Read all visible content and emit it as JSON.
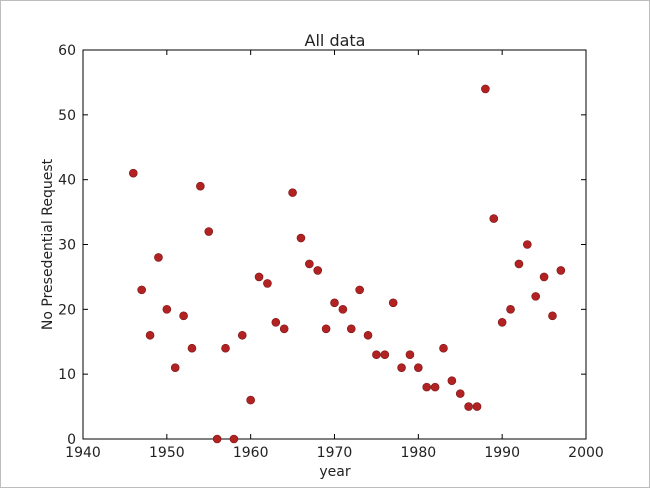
{
  "chart_data": {
    "type": "scatter",
    "title": "All data",
    "xlabel": "year",
    "ylabel": "No Presedential Request",
    "xlim": [
      1940,
      2000
    ],
    "ylim": [
      0,
      60
    ],
    "xticks": [
      1940,
      1950,
      1960,
      1970,
      1980,
      1990,
      2000
    ],
    "yticks": [
      0,
      10,
      20,
      30,
      40,
      50,
      60
    ],
    "grid": false,
    "marker_color": "#b22222",
    "x": [
      1946,
      1947,
      1948,
      1949,
      1950,
      1951,
      1952,
      1953,
      1954,
      1955,
      1956,
      1957,
      1958,
      1959,
      1960,
      1961,
      1962,
      1963,
      1964,
      1965,
      1966,
      1967,
      1968,
      1969,
      1970,
      1971,
      1972,
      1973,
      1974,
      1975,
      1976,
      1977,
      1978,
      1979,
      1980,
      1981,
      1982,
      1983,
      1984,
      1985,
      1986,
      1987,
      1988,
      1989,
      1990,
      1991,
      1992,
      1993,
      1994,
      1995,
      1996,
      1997
    ],
    "y": [
      41,
      23,
      16,
      28,
      20,
      11,
      19,
      14,
      39,
      32,
      0,
      14,
      0,
      16,
      6,
      25,
      24,
      18,
      17,
      38,
      31,
      27,
      26,
      17,
      21,
      20,
      17,
      23,
      16,
      13,
      13,
      21,
      11,
      13,
      11,
      8,
      8,
      14,
      9,
      7,
      5,
      5,
      54,
      34,
      18,
      20,
      27,
      30,
      22,
      25,
      19,
      26
    ]
  }
}
